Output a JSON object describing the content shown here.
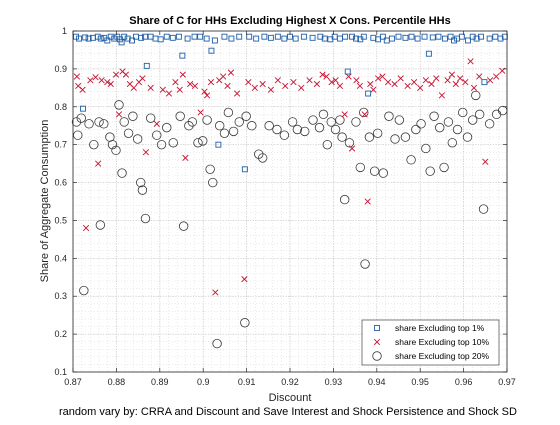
{
  "chart_data": {
    "type": "scatter",
    "title": "Share of C for HHs Excluding Highest X Cons. Percentile HHs",
    "xlabel": "Discount",
    "ylabel": "Share of Aggregate Consumption",
    "footnote": "random vary by: CRRA and Discount and Save Interest and Shock Persistence and Shock SD",
    "xlim": [
      0.87,
      0.97
    ],
    "ylim": [
      0.1,
      1.0
    ],
    "xticks": [
      0.87,
      0.88,
      0.89,
      0.9,
      0.91,
      0.92,
      0.93,
      0.94,
      0.95,
      0.96,
      0.97
    ],
    "xtick_labels": [
      "0.87",
      "0.88",
      "0.89",
      "0.9",
      "0.91",
      "0.92",
      "0.93",
      "0.94",
      "0.95",
      "0.96",
      "0.97"
    ],
    "yticks": [
      0.1,
      0.2,
      0.3,
      0.4,
      0.5,
      0.6,
      0.7,
      0.8,
      0.9,
      1.0
    ],
    "ytick_labels": [
      "0.1",
      "0.2",
      "0.3",
      "0.4",
      "0.5",
      "0.6",
      "0.7",
      "0.8",
      "0.9",
      "1"
    ],
    "grid": "dotted",
    "legend_position": "bottom-right",
    "colors": {
      "top1": "#1f5fa8",
      "top10": "#c8102e",
      "top20": "#3a3a3a",
      "grid": "#d4d4d4",
      "axis": "#262626"
    },
    "series": [
      {
        "name": "share Excluding top 1%",
        "marker": "square",
        "points": [
          [
            0.8707,
            0.985
          ],
          [
            0.8714,
            0.98
          ],
          [
            0.8723,
            0.795
          ],
          [
            0.8728,
            0.983
          ],
          [
            0.8736,
            0.98
          ],
          [
            0.8746,
            0.982
          ],
          [
            0.8757,
            0.985
          ],
          [
            0.8764,
            0.98
          ],
          [
            0.8772,
            0.982
          ],
          [
            0.8779,
            0.975
          ],
          [
            0.8787,
            0.985
          ],
          [
            0.8795,
            0.98
          ],
          [
            0.8802,
            0.985
          ],
          [
            0.8808,
            0.978
          ],
          [
            0.8812,
            0.97
          ],
          [
            0.8818,
            0.985
          ],
          [
            0.8826,
            0.98
          ],
          [
            0.8836,
            0.975
          ],
          [
            0.8845,
            0.985
          ],
          [
            0.8857,
            0.982
          ],
          [
            0.8866,
            0.985
          ],
          [
            0.887,
            0.908
          ],
          [
            0.8879,
            0.985
          ],
          [
            0.889,
            0.98
          ],
          [
            0.8902,
            0.978
          ],
          [
            0.8916,
            0.985
          ],
          [
            0.893,
            0.982
          ],
          [
            0.8944,
            0.985
          ],
          [
            0.8952,
            0.935
          ],
          [
            0.8964,
            0.98
          ],
          [
            0.898,
            0.985
          ],
          [
            0.8993,
            0.985
          ],
          [
            0.9008,
            0.98
          ],
          [
            0.9019,
            0.948
          ],
          [
            0.9027,
            0.975
          ],
          [
            0.9035,
            0.7
          ],
          [
            0.9049,
            0.985
          ],
          [
            0.9065,
            0.98
          ],
          [
            0.9083,
            0.985
          ],
          [
            0.9096,
            0.635
          ],
          [
            0.9106,
            0.985
          ],
          [
            0.9122,
            0.98
          ],
          [
            0.9141,
            0.985
          ],
          [
            0.9156,
            0.982
          ],
          [
            0.9172,
            0.985
          ],
          [
            0.9187,
            0.98
          ],
          [
            0.92,
            0.985
          ],
          [
            0.9213,
            0.98
          ],
          [
            0.9232,
            0.985
          ],
          [
            0.9252,
            0.982
          ],
          [
            0.927,
            0.985
          ],
          [
            0.928,
            0.98
          ],
          [
            0.9293,
            0.978
          ],
          [
            0.9303,
            0.985
          ],
          [
            0.9315,
            0.98
          ],
          [
            0.9327,
            0.985
          ],
          [
            0.9333,
            0.893
          ],
          [
            0.9343,
            0.985
          ],
          [
            0.9352,
            0.98
          ],
          [
            0.9362,
            0.978
          ],
          [
            0.937,
            0.985
          ],
          [
            0.938,
            0.835
          ],
          [
            0.9392,
            0.982
          ],
          [
            0.9403,
            0.978
          ],
          [
            0.9414,
            0.985
          ],
          [
            0.9423,
            0.975
          ],
          [
            0.9435,
            0.98
          ],
          [
            0.945,
            0.985
          ],
          [
            0.9466,
            0.982
          ],
          [
            0.948,
            0.985
          ],
          [
            0.9494,
            0.98
          ],
          [
            0.951,
            0.985
          ],
          [
            0.952,
            0.94
          ],
          [
            0.9529,
            0.983
          ],
          [
            0.9542,
            0.985
          ],
          [
            0.9557,
            0.98
          ],
          [
            0.957,
            0.985
          ],
          [
            0.9578,
            0.975
          ],
          [
            0.9585,
            0.98
          ],
          [
            0.9596,
            0.985
          ],
          [
            0.961,
            0.975
          ],
          [
            0.9621,
            0.985
          ],
          [
            0.963,
            0.98
          ],
          [
            0.964,
            0.985
          ],
          [
            0.9648,
            0.865
          ],
          [
            0.966,
            0.98
          ],
          [
            0.9673,
            0.985
          ],
          [
            0.9685,
            0.98
          ],
          [
            0.9695,
            0.985
          ]
        ]
      },
      {
        "name": "share Excluding top 10%",
        "marker": "x",
        "points": [
          [
            0.8709,
            0.88
          ],
          [
            0.8712,
            0.855
          ],
          [
            0.8722,
            0.845
          ],
          [
            0.873,
            0.48
          ],
          [
            0.874,
            0.87
          ],
          [
            0.8752,
            0.878
          ],
          [
            0.8758,
            0.65
          ],
          [
            0.8766,
            0.87
          ],
          [
            0.8779,
            0.865
          ],
          [
            0.8787,
            0.86
          ],
          [
            0.8799,
            0.885
          ],
          [
            0.8806,
            0.78
          ],
          [
            0.8814,
            0.893
          ],
          [
            0.8822,
            0.885
          ],
          [
            0.8831,
            0.86
          ],
          [
            0.884,
            0.85
          ],
          [
            0.8852,
            0.865
          ],
          [
            0.886,
            0.875
          ],
          [
            0.8868,
            0.68
          ],
          [
            0.8879,
            0.85
          ],
          [
            0.8893,
            0.755
          ],
          [
            0.8907,
            0.845
          ],
          [
            0.8921,
            0.835
          ],
          [
            0.8936,
            0.865
          ],
          [
            0.8946,
            0.845
          ],
          [
            0.8953,
            0.885
          ],
          [
            0.8959,
            0.665
          ],
          [
            0.897,
            0.86
          ],
          [
            0.8981,
            0.855
          ],
          [
            0.8994,
            0.785
          ],
          [
            0.9003,
            0.84
          ],
          [
            0.9009,
            0.83
          ],
          [
            0.9018,
            0.865
          ],
          [
            0.9028,
            0.31
          ],
          [
            0.9037,
            0.87
          ],
          [
            0.9046,
            0.88
          ],
          [
            0.9056,
            0.855
          ],
          [
            0.9064,
            0.89
          ],
          [
            0.9078,
            0.835
          ],
          [
            0.9095,
            0.345
          ],
          [
            0.9104,
            0.865
          ],
          [
            0.9119,
            0.85
          ],
          [
            0.9137,
            0.86
          ],
          [
            0.9156,
            0.845
          ],
          [
            0.9172,
            0.87
          ],
          [
            0.9189,
            0.855
          ],
          [
            0.9208,
            0.865
          ],
          [
            0.9226,
            0.85
          ],
          [
            0.9245,
            0.87
          ],
          [
            0.9262,
            0.86
          ],
          [
            0.9275,
            0.885
          ],
          [
            0.9284,
            0.88
          ],
          [
            0.9296,
            0.865
          ],
          [
            0.9305,
            0.87
          ],
          [
            0.9315,
            0.855
          ],
          [
            0.9326,
            0.78
          ],
          [
            0.9335,
            0.88
          ],
          [
            0.9343,
            0.69
          ],
          [
            0.9353,
            0.87
          ],
          [
            0.9361,
            0.855
          ],
          [
            0.9372,
            0.78
          ],
          [
            0.9379,
            0.55
          ],
          [
            0.9385,
            0.86
          ],
          [
            0.9392,
            0.845
          ],
          [
            0.9403,
            0.875
          ],
          [
            0.9413,
            0.88
          ],
          [
            0.9426,
            0.865
          ],
          [
            0.9441,
            0.86
          ],
          [
            0.9455,
            0.875
          ],
          [
            0.9471,
            0.855
          ],
          [
            0.9486,
            0.865
          ],
          [
            0.95,
            0.85
          ],
          [
            0.9513,
            0.87
          ],
          [
            0.9526,
            0.86
          ],
          [
            0.9537,
            0.875
          ],
          [
            0.955,
            0.83
          ],
          [
            0.9563,
            0.87
          ],
          [
            0.9573,
            0.885
          ],
          [
            0.9582,
            0.86
          ],
          [
            0.9592,
            0.875
          ],
          [
            0.9604,
            0.865
          ],
          [
            0.9616,
            0.92
          ],
          [
            0.9624,
            0.85
          ],
          [
            0.9636,
            0.88
          ],
          [
            0.965,
            0.655
          ],
          [
            0.9661,
            0.87
          ],
          [
            0.9675,
            0.88
          ],
          [
            0.9689,
            0.895
          ]
        ]
      },
      {
        "name": "share Excluding top 20%",
        "marker": "circle",
        "points": [
          [
            0.8708,
            0.76
          ],
          [
            0.8711,
            0.725
          ],
          [
            0.8719,
            0.77
          ],
          [
            0.8725,
            0.315
          ],
          [
            0.8737,
            0.755
          ],
          [
            0.8748,
            0.7
          ],
          [
            0.876,
            0.76
          ],
          [
            0.8763,
            0.488
          ],
          [
            0.8771,
            0.755
          ],
          [
            0.8785,
            0.72
          ],
          [
            0.8791,
            0.7
          ],
          [
            0.8799,
            0.685
          ],
          [
            0.8806,
            0.805
          ],
          [
            0.8813,
            0.625
          ],
          [
            0.8818,
            0.76
          ],
          [
            0.8828,
            0.73
          ],
          [
            0.8838,
            0.775
          ],
          [
            0.8849,
            0.715
          ],
          [
            0.8856,
            0.6
          ],
          [
            0.886,
            0.58
          ],
          [
            0.8867,
            0.505
          ],
          [
            0.8879,
            0.77
          ],
          [
            0.8893,
            0.725
          ],
          [
            0.8904,
            0.7
          ],
          [
            0.8916,
            0.745
          ],
          [
            0.8931,
            0.705
          ],
          [
            0.8947,
            0.775
          ],
          [
            0.8955,
            0.485
          ],
          [
            0.8967,
            0.75
          ],
          [
            0.8975,
            0.76
          ],
          [
            0.8988,
            0.705
          ],
          [
            0.8999,
            0.71
          ],
          [
            0.9009,
            0.765
          ],
          [
            0.9016,
            0.635
          ],
          [
            0.9022,
            0.6
          ],
          [
            0.9032,
            0.175
          ],
          [
            0.9038,
            0.75
          ],
          [
            0.9049,
            0.73
          ],
          [
            0.9058,
            0.785
          ],
          [
            0.907,
            0.735
          ],
          [
            0.9083,
            0.76
          ],
          [
            0.9096,
            0.23
          ],
          [
            0.9099,
            0.775
          ],
          [
            0.9112,
            0.75
          ],
          [
            0.9128,
            0.675
          ],
          [
            0.9137,
            0.665
          ],
          [
            0.9152,
            0.75
          ],
          [
            0.917,
            0.74
          ],
          [
            0.9187,
            0.725
          ],
          [
            0.9206,
            0.76
          ],
          [
            0.9217,
            0.74
          ],
          [
            0.9234,
            0.735
          ],
          [
            0.9253,
            0.765
          ],
          [
            0.9268,
            0.745
          ],
          [
            0.9277,
            0.78
          ],
          [
            0.9286,
            0.7
          ],
          [
            0.9295,
            0.76
          ],
          [
            0.9305,
            0.74
          ],
          [
            0.9315,
            0.765
          ],
          [
            0.932,
            0.72
          ],
          [
            0.9326,
            0.555
          ],
          [
            0.9337,
            0.705
          ],
          [
            0.9352,
            0.76
          ],
          [
            0.9362,
            0.64
          ],
          [
            0.937,
            0.785
          ],
          [
            0.9373,
            0.385
          ],
          [
            0.9383,
            0.72
          ],
          [
            0.9395,
            0.63
          ],
          [
            0.9402,
            0.73
          ],
          [
            0.9415,
            0.625
          ],
          [
            0.9428,
            0.775
          ],
          [
            0.9442,
            0.715
          ],
          [
            0.9452,
            0.765
          ],
          [
            0.9466,
            0.72
          ],
          [
            0.9479,
            0.66
          ],
          [
            0.949,
            0.74
          ],
          [
            0.9502,
            0.755
          ],
          [
            0.9513,
            0.69
          ],
          [
            0.9523,
            0.63
          ],
          [
            0.9532,
            0.775
          ],
          [
            0.9545,
            0.745
          ],
          [
            0.9555,
            0.64
          ],
          [
            0.9565,
            0.76
          ],
          [
            0.9574,
            0.705
          ],
          [
            0.9586,
            0.74
          ],
          [
            0.9598,
            0.785
          ],
          [
            0.9609,
            0.72
          ],
          [
            0.9621,
            0.765
          ],
          [
            0.9628,
            0.83
          ],
          [
            0.9637,
            0.78
          ],
          [
            0.9646,
            0.53
          ],
          [
            0.966,
            0.755
          ],
          [
            0.9676,
            0.78
          ],
          [
            0.969,
            0.79
          ]
        ]
      }
    ]
  }
}
